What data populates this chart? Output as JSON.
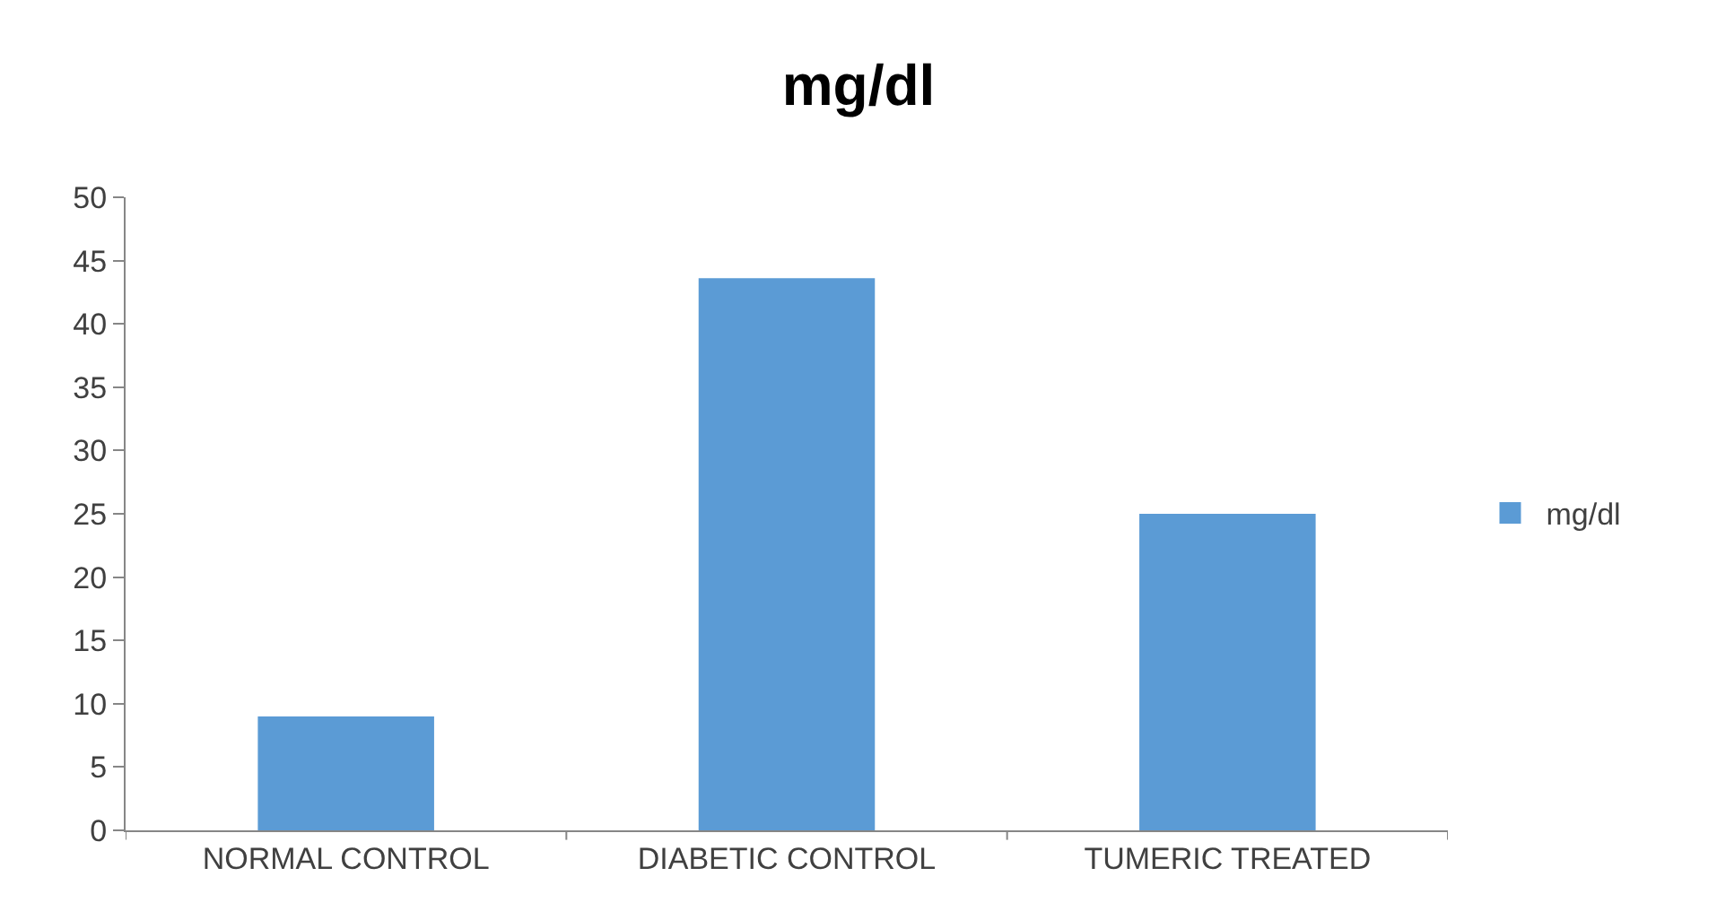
{
  "chart_data": {
    "type": "bar",
    "title": "mg/dl",
    "categories": [
      "NORMAL CONTROL",
      "DIABETIC CONTROL",
      "TUMERIC TREATED"
    ],
    "series": [
      {
        "name": "mg/dl",
        "color": "#5b9bd5",
        "values": [
          9,
          43.6,
          25
        ]
      }
    ],
    "ylim": [
      0,
      50
    ],
    "yticks": [
      0,
      5,
      10,
      15,
      20,
      25,
      30,
      35,
      40,
      45,
      50
    ],
    "legend": "right"
  }
}
